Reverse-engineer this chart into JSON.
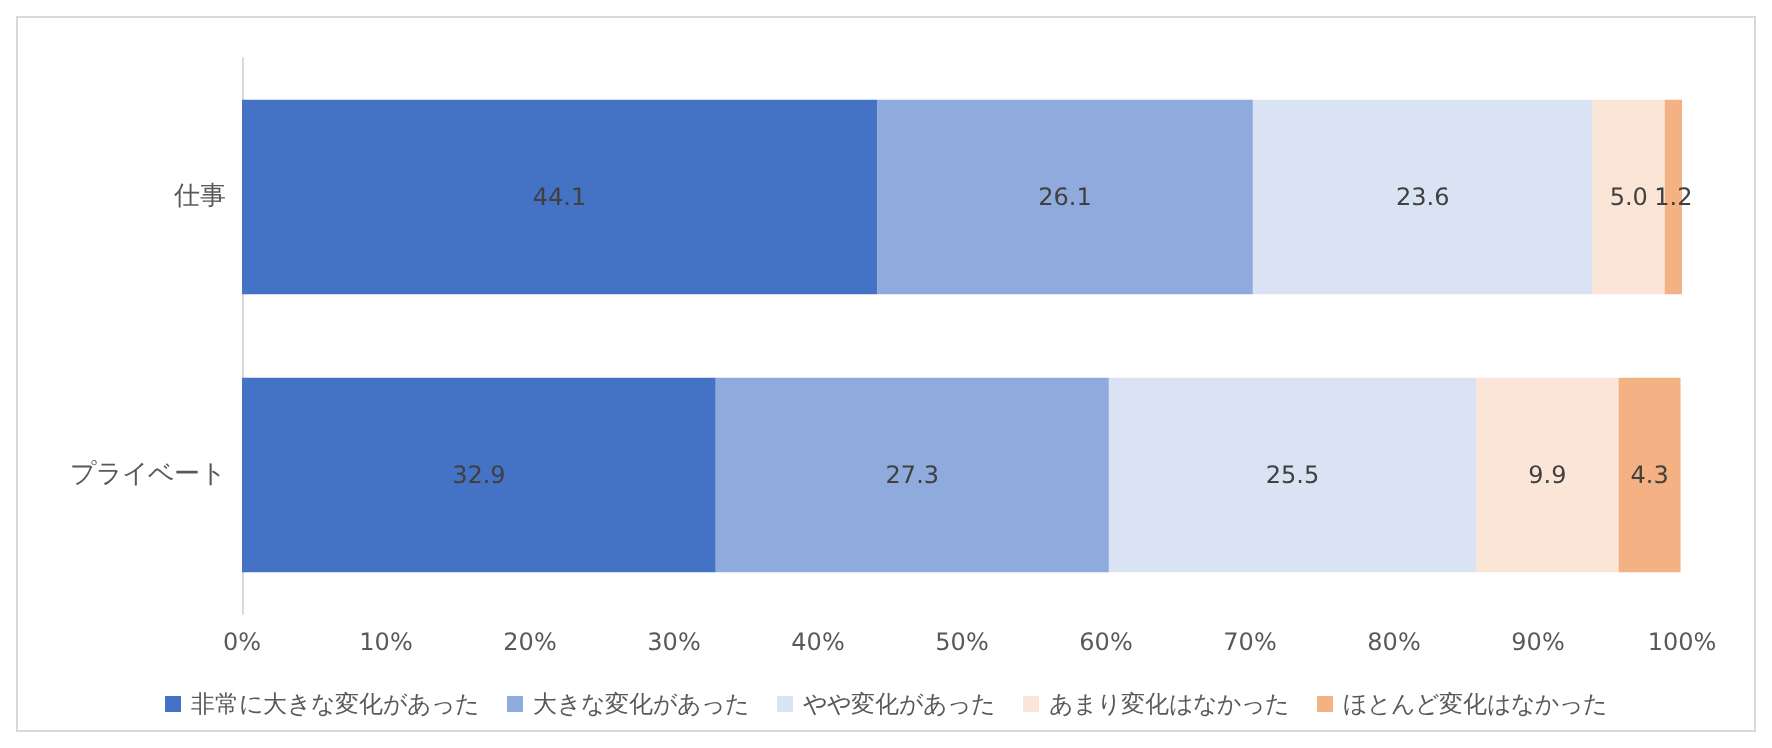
{
  "chart_data": {
    "type": "bar",
    "orientation": "horizontal",
    "stacked": true,
    "categories": [
      "仕事",
      "プライベート"
    ],
    "series": [
      {
        "name": "非常に大きな変化があった",
        "color": "#4472c4",
        "values": [
          44.1,
          32.9
        ]
      },
      {
        "name": "大きな変化があった",
        "color": "#8faadc",
        "values": [
          26.1,
          27.3
        ]
      },
      {
        "name": "やや変化があった",
        "color": "#dae3f3",
        "values": [
          23.6,
          25.5
        ]
      },
      {
        "name": "あまり変化はなかった",
        "color": "#fbe5d6",
        "values": [
          5.0,
          9.9
        ],
        "value_labels": [
          "5.0",
          "9.9"
        ]
      },
      {
        "name": "ほとんど変化はなかった",
        "color": "#f4b183",
        "values": [
          1.2,
          4.3
        ]
      }
    ],
    "xlim": [
      0,
      100
    ],
    "xticks": [
      {
        "value": 0,
        "label": "0%"
      },
      {
        "value": 10,
        "label": "10%"
      },
      {
        "value": 20,
        "label": "20%"
      },
      {
        "value": 30,
        "label": "30%"
      },
      {
        "value": 40,
        "label": "40%"
      },
      {
        "value": 50,
        "label": "50%"
      },
      {
        "value": 60,
        "label": "60%"
      },
      {
        "value": 70,
        "label": "70%"
      },
      {
        "value": 80,
        "label": "80%"
      },
      {
        "value": 90,
        "label": "90%"
      },
      {
        "value": 100,
        "label": "100%"
      }
    ],
    "data_labels": true,
    "grid": false,
    "legend": "bottom"
  }
}
